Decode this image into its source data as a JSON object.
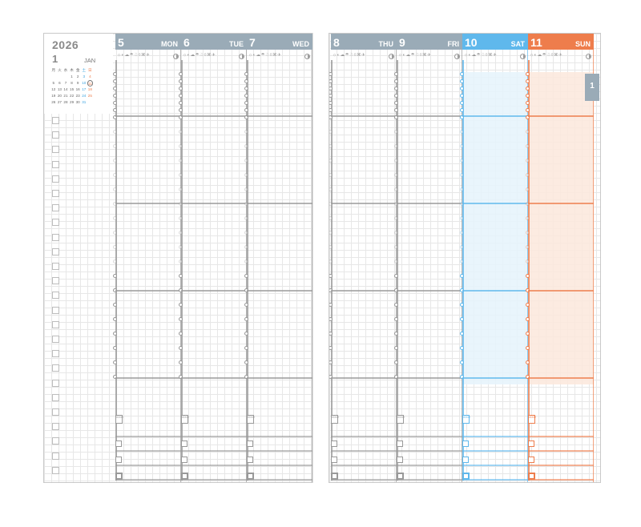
{
  "calendar": {
    "year": "2026",
    "month_number": "1",
    "month_name": "JAN",
    "weekday_letters": [
      "月",
      "火",
      "水",
      "木",
      "金",
      "土",
      "日"
    ],
    "weeks": [
      [
        "",
        "",
        "",
        "1",
        "2",
        "3",
        "4"
      ],
      [
        "5",
        "6",
        "7",
        "8",
        "9",
        "10",
        "11"
      ],
      [
        "12",
        "13",
        "14",
        "15",
        "16",
        "17",
        "18"
      ],
      [
        "19",
        "20",
        "21",
        "22",
        "23",
        "24",
        "25"
      ],
      [
        "26",
        "27",
        "28",
        "29",
        "30",
        "31",
        ""
      ]
    ],
    "highlighted_day": "11"
  },
  "days": [
    {
      "num": "5",
      "name": "MON",
      "kind": "weekday"
    },
    {
      "num": "6",
      "name": "TUE",
      "kind": "weekday"
    },
    {
      "num": "7",
      "name": "WED",
      "kind": "weekday"
    },
    {
      "num": "8",
      "name": "THU",
      "kind": "weekday"
    },
    {
      "num": "9",
      "name": "FRI",
      "kind": "weekday"
    },
    {
      "num": "10",
      "name": "SAT",
      "kind": "saturday"
    },
    {
      "num": "11",
      "name": "SUN",
      "kind": "sunday"
    }
  ],
  "weather_icons": "☼◐☁☂☃◊⌘✈",
  "time_label_text": "0000",
  "month_tab": "1",
  "colors": {
    "weekday": "#999999",
    "saturday": "#5fb8ec",
    "sunday": "#ee7d4c",
    "saturday_fill": "#e5f3fc",
    "sunday_fill": "#fbe7dc",
    "tab": "#9aabb7",
    "grid": "#e7e7e7"
  }
}
